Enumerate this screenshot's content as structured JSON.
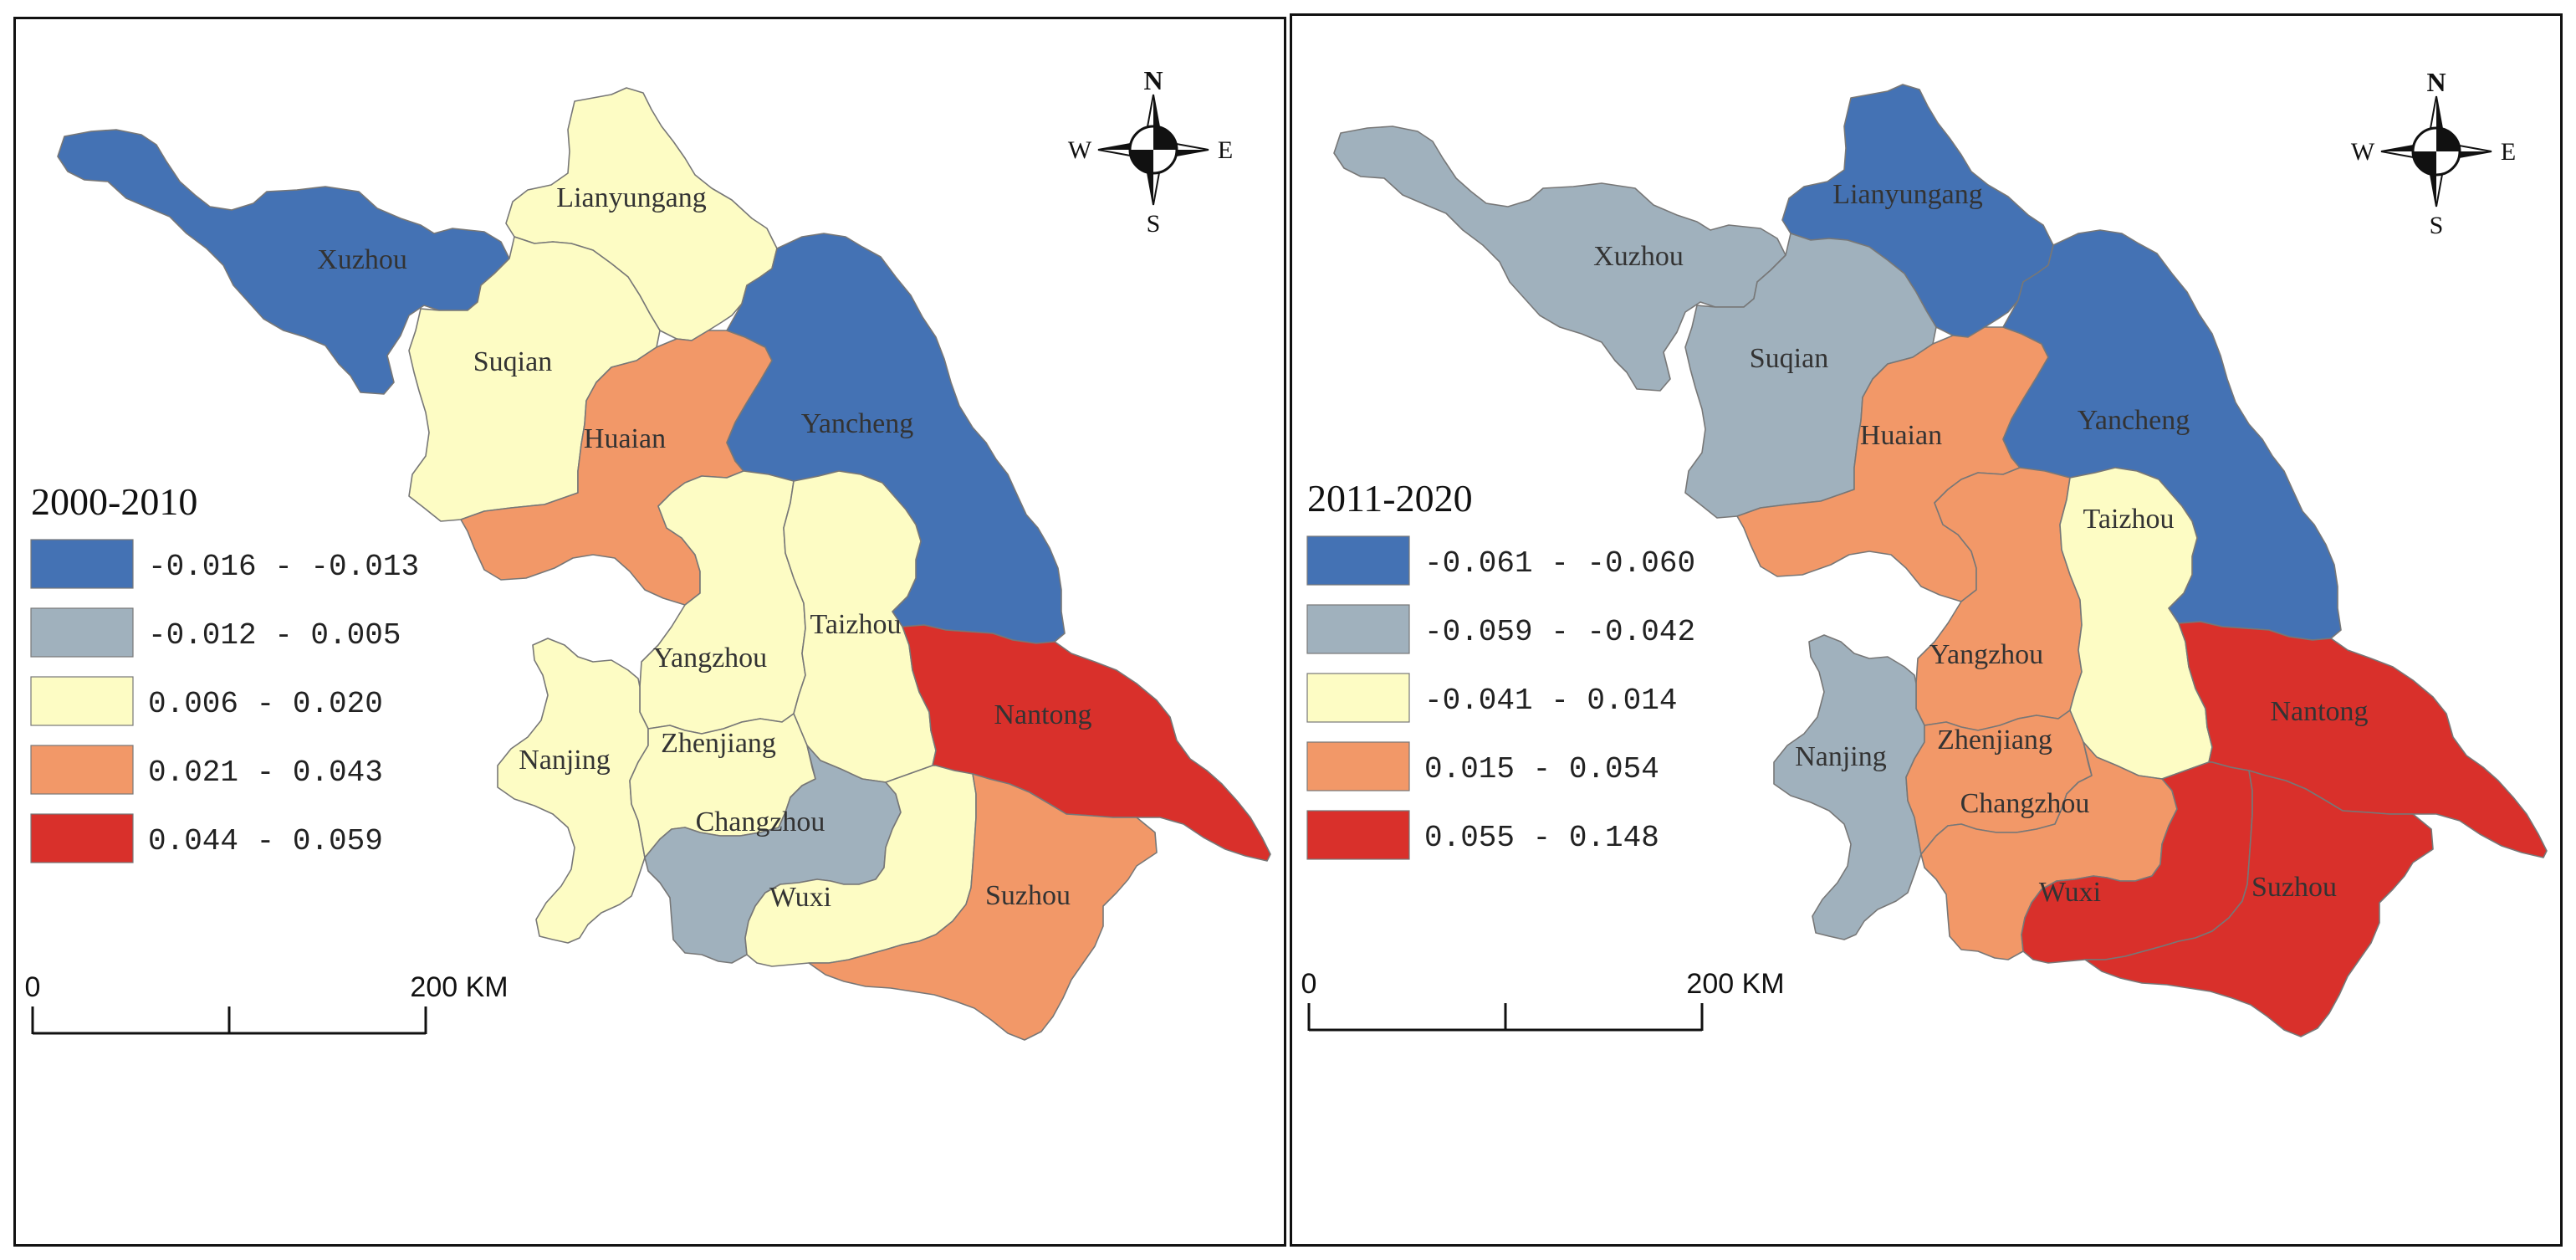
{
  "colors": {
    "class1": "#4472b4",
    "class2": "#a0b1bd",
    "class3": "#fdfcc4",
    "class4": "#f29868",
    "class5": "#d9302b",
    "border": "#777777"
  },
  "compass": {
    "n": "N",
    "s": "S",
    "e": "E",
    "w": "W"
  },
  "scale": {
    "zero": "0",
    "end": "200 KM"
  },
  "panels": [
    {
      "title": "2000-2010",
      "legend": [
        {
          "label": "-0.016 - -0.013",
          "color": "#4472b4"
        },
        {
          "label": "-0.012 - 0.005",
          "color": "#a0b1bd"
        },
        {
          "label": "0.006 - 0.020",
          "color": "#fdfcc4"
        },
        {
          "label": "0.021 - 0.043",
          "color": "#f29868"
        },
        {
          "label": "0.044 - 0.059",
          "color": "#d9302b"
        }
      ],
      "regions": [
        {
          "name": "Xuzhou",
          "class": 1
        },
        {
          "name": "Lianyungang",
          "class": 3
        },
        {
          "name": "Suqian",
          "class": 3
        },
        {
          "name": "Huaian",
          "class": 4
        },
        {
          "name": "Yancheng",
          "class": 1
        },
        {
          "name": "Yangzhou",
          "class": 3
        },
        {
          "name": "Taizhou",
          "class": 3
        },
        {
          "name": "Nantong",
          "class": 5
        },
        {
          "name": "Nanjing",
          "class": 3
        },
        {
          "name": "Zhenjiang",
          "class": 3
        },
        {
          "name": "Changzhou",
          "class": 2
        },
        {
          "name": "Wuxi",
          "class": 3
        },
        {
          "name": "Suzhou",
          "class": 4
        }
      ]
    },
    {
      "title": "2011-2020",
      "legend": [
        {
          "label": "-0.061 - -0.060",
          "color": "#4472b4"
        },
        {
          "label": "-0.059 - -0.042",
          "color": "#a0b1bd"
        },
        {
          "label": "-0.041 - 0.014",
          "color": "#fdfcc4"
        },
        {
          "label": "0.015 - 0.054",
          "color": "#f29868"
        },
        {
          "label": "0.055 - 0.148",
          "color": "#d9302b"
        }
      ],
      "regions": [
        {
          "name": "Xuzhou",
          "class": 2
        },
        {
          "name": "Lianyungang",
          "class": 1
        },
        {
          "name": "Suqian",
          "class": 2
        },
        {
          "name": "Huaian",
          "class": 4
        },
        {
          "name": "Yancheng",
          "class": 1
        },
        {
          "name": "Yangzhou",
          "class": 4
        },
        {
          "name": "Taizhou",
          "class": 3
        },
        {
          "name": "Nantong",
          "class": 5
        },
        {
          "name": "Nanjing",
          "class": 2
        },
        {
          "name": "Zhenjiang",
          "class": 4
        },
        {
          "name": "Changzhou",
          "class": 4
        },
        {
          "name": "Wuxi",
          "class": 5
        },
        {
          "name": "Suzhou",
          "class": 5
        }
      ]
    }
  ]
}
